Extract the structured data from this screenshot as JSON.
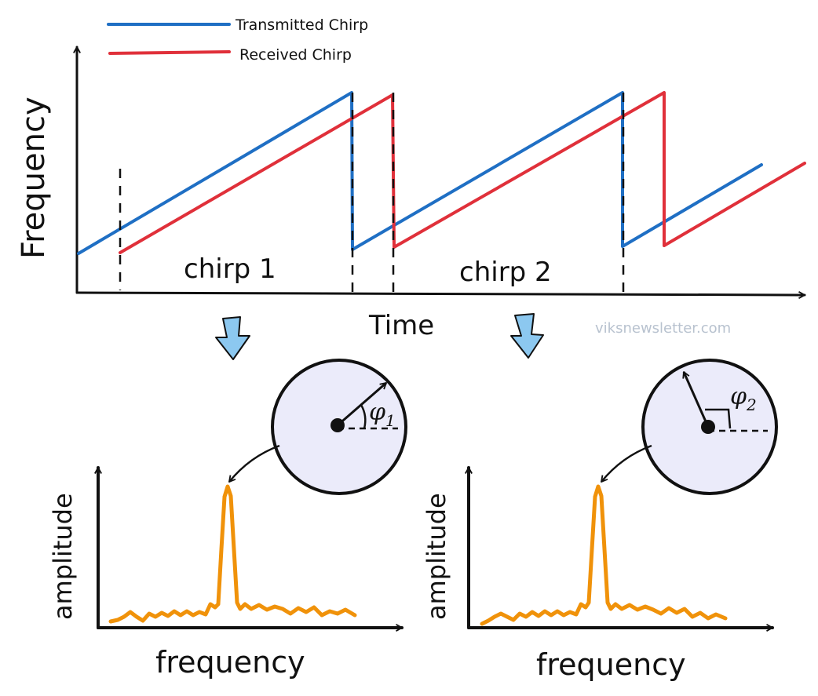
{
  "legend": {
    "transmitted": "Transmitted Chirp",
    "received": "Received Chirp"
  },
  "top_chart": {
    "ylabel": "Frequency",
    "xlabel": "Time",
    "chirp1_label": "chirp 1",
    "chirp2_label": "chirp 2"
  },
  "watermark": "viksnewsletter.com",
  "spectrum_left": {
    "ylabel": "amplitude",
    "xlabel": "frequency",
    "phase_symbol": "φ",
    "phase_subscript": "1"
  },
  "spectrum_right": {
    "ylabel": "amplitude",
    "xlabel": "frequency",
    "phase_symbol": "φ",
    "phase_subscript": "2"
  },
  "colors": {
    "transmitted": "#1f6fc4",
    "received": "#e0303a",
    "spectrum": "#f0920a",
    "phasor_fill": "#ebebfa",
    "down_arrow": "#8cc8f0"
  },
  "chart_data": {
    "type": "line",
    "title": "",
    "xlabel": "Time",
    "ylabel": "Frequency",
    "series": [
      {
        "name": "Transmitted Chirp",
        "shape": "sawtooth",
        "segments": 3
      },
      {
        "name": "Received Chirp",
        "shape": "sawtooth (delayed)",
        "segments": 3
      }
    ],
    "annotations": [
      "chirp 1",
      "chirp 2"
    ]
  }
}
